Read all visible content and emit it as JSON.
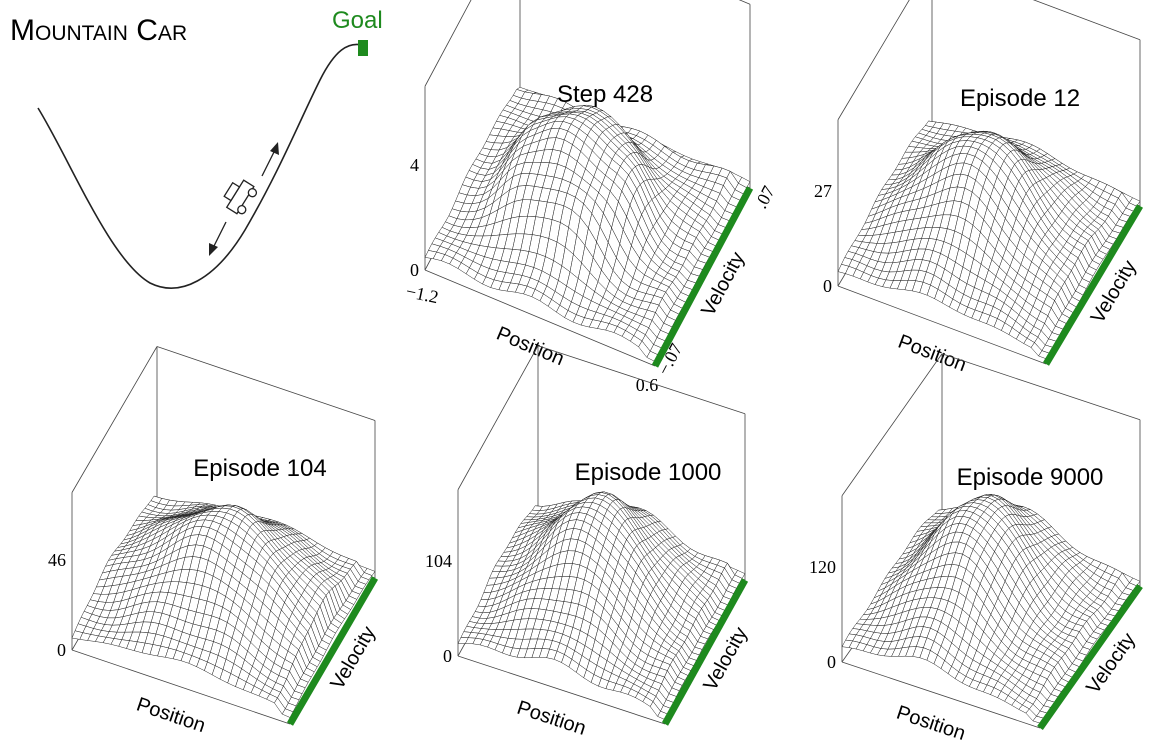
{
  "title": "Mountain Car",
  "goal": "Goal",
  "panels": [
    {
      "title": "Step 428",
      "z_max": "4",
      "z_min": "0",
      "x_label": "Position",
      "y_label": "Velocity",
      "x_min": "−1.2",
      "x_max": "0.6",
      "y_min": "−.07",
      "y_max": ".07"
    },
    {
      "title": "Episode 12",
      "z_max": "27",
      "z_min": "0",
      "x_label": "Position",
      "y_label": "Velocity"
    },
    {
      "title": "Episode 104",
      "z_max": "46",
      "z_min": "0",
      "x_label": "Position",
      "y_label": "Velocity"
    },
    {
      "title": "Episode 1000",
      "z_max": "104",
      "z_min": "0",
      "x_label": "Position",
      "y_label": "Velocity"
    },
    {
      "title": "Episode 9000",
      "z_max": "120",
      "z_min": "0",
      "x_label": "Position",
      "y_label": "Velocity"
    }
  ]
}
